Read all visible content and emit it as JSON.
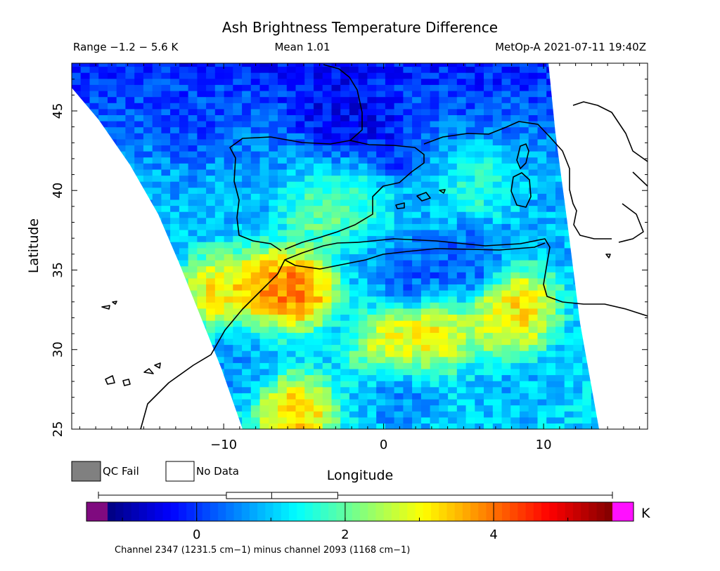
{
  "header": {
    "title": "Ash Brightness Temperature Difference",
    "range": "Range −1.2 − 5.6 K",
    "mean": "Mean 1.01",
    "satellite_time": "MetOp-A 2021-07-11 19:40Z"
  },
  "legend": {
    "qc_fail": "QC Fail",
    "no_data": "No Data",
    "qc_fail_color": "#808080",
    "no_data_color": "#ffffff"
  },
  "colorbar": {
    "unit": "K",
    "caption": "Channel 2347 (1231.5 cm−1) minus channel 2093 (1168 cm−1)",
    "tick_labels": [
      "0",
      "2",
      "4"
    ],
    "under_color": "#7f0a7f",
    "over_color": "#ff10ff",
    "colors": [
      "#00007f",
      "#0000ff",
      "#0080ff",
      "#00ffff",
      "#80ff80",
      "#ffff00",
      "#ff8000",
      "#ff0000",
      "#7f0000"
    ]
  },
  "chart_data": {
    "type": "heatmap",
    "title": "Ash Brightness Temperature Difference",
    "xlabel": "Longitude",
    "ylabel": "Latitude",
    "xlim": [
      -19.5,
      16.5
    ],
    "ylim": [
      25,
      48
    ],
    "xticks": [
      -10,
      0,
      10
    ],
    "yticks": [
      25,
      30,
      35,
      40,
      45
    ],
    "value_range": [
      -1.2,
      5.6
    ],
    "colorbar_range": [
      -1.2,
      5.6
    ],
    "mean": 1.01,
    "unit": "K",
    "field_blobs": [
      {
        "lon": -5.5,
        "lat": 33.8,
        "value": 5.0
      },
      {
        "lon": -7.5,
        "lat": 33.9,
        "value": 4.2
      },
      {
        "lon": -10.5,
        "lat": 33.7,
        "value": 3.8
      },
      {
        "lon": -5.5,
        "lat": 26.0,
        "value": 4.2
      },
      {
        "lon": 0.5,
        "lat": 30.2,
        "value": 3.6
      },
      {
        "lon": 3.0,
        "lat": 31.0,
        "value": 3.8
      },
      {
        "lon": 7.5,
        "lat": 31.8,
        "value": 3.4
      },
      {
        "lon": 8.5,
        "lat": 32.8,
        "value": 3.8
      },
      {
        "lon": -4.0,
        "lat": 38.5,
        "value": 2.3
      },
      {
        "lon": -1.5,
        "lat": 39.7,
        "value": 2.0
      },
      {
        "lon": 6.0,
        "lat": 40.5,
        "value": 1.8
      },
      {
        "lon": -1.5,
        "lat": 44.5,
        "value": -0.6
      },
      {
        "lon": -3.5,
        "lat": 45.5,
        "value": -0.5
      },
      {
        "lon": 0.0,
        "lat": 42.5,
        "value": -0.3
      },
      {
        "lon": -12.0,
        "lat": 44.0,
        "value": 0.1
      },
      {
        "lon": 2.0,
        "lat": 34.5,
        "value": 0.0
      },
      {
        "lon": 5.5,
        "lat": 35.5,
        "value": 0.0
      },
      {
        "lon": 1.0,
        "lat": 27.5,
        "value": 0.3
      },
      {
        "lon": 8.0,
        "lat": 27.0,
        "value": 0.8
      },
      {
        "lon": -9.5,
        "lat": 29.0,
        "value": 0.6
      }
    ]
  }
}
